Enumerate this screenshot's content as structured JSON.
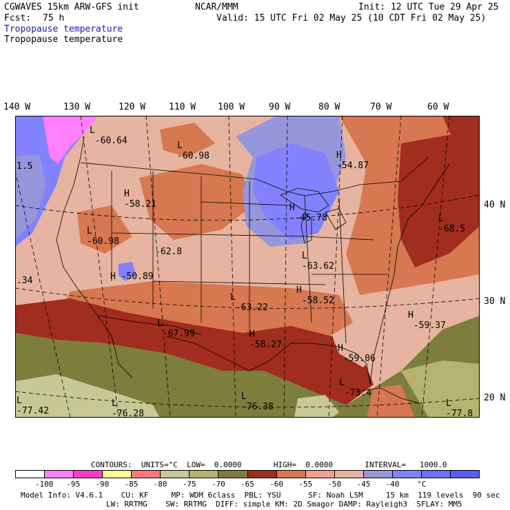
{
  "header": {
    "model": "CGWAVES 15km ARW-GFS init",
    "center": "NCAR/MMM",
    "init": "Init: 12 UTC Tue 29 Apr 25",
    "fcst_label": "Fcst:",
    "fcst_value": "75 h",
    "valid": "Valid: 15 UTC Fri 02 May 25 (10 CDT Fri 02 May 25)",
    "field_title_1": "Tropopause temperature",
    "field_title_2": "Tropopause temperature"
  },
  "longitude_labels": [
    "140 W",
    "130 W",
    "120 W",
    "110 W",
    "100 W",
    "90 W",
    "80 W",
    "70 W",
    "60 W"
  ],
  "latitude_labels": [
    "40 N",
    "30 N",
    "20 N"
  ],
  "map_labels": [
    {
      "marker": "L",
      "value": "-60.64"
    },
    {
      "marker": "L",
      "value": "-60.98"
    },
    {
      "marker": "H",
      "value": "-54.87"
    },
    {
      "marker": "",
      "value": "1.5"
    },
    {
      "marker": "H",
      "value": "-58.21"
    },
    {
      "marker": "H",
      "value": "-45.78"
    },
    {
      "marker": "L",
      "value": "-60.98"
    },
    {
      "marker": "",
      "value": "-62.8"
    },
    {
      "marker": "L",
      "value": "-68.5"
    },
    {
      "marker": "L",
      "value": "-63.62"
    },
    {
      "marker": "H",
      "value": "-50.89"
    },
    {
      "marker": "",
      "value": ".34"
    },
    {
      "marker": "L",
      "value": "-63.22"
    },
    {
      "marker": "H",
      "value": "-58.52"
    },
    {
      "marker": "H",
      "value": "-59.37"
    },
    {
      "marker": "L",
      "value": "-67.99"
    },
    {
      "marker": "H",
      "value": "-58.27"
    },
    {
      "marker": "H",
      "value": "-59.06"
    },
    {
      "marker": "L",
      "value": "-73.4"
    },
    {
      "marker": "L",
      "value": "-77.42"
    },
    {
      "marker": "L",
      "value": "-76.28"
    },
    {
      "marker": "L",
      "value": "-76.38"
    },
    {
      "marker": "L",
      "value": "-77.8"
    }
  ],
  "contours_line": "CONTOURS:  UNITS=°C  LOW=  0.0000       HIGH=  0.0000       INTERVAL=   1000.0",
  "color_scale": {
    "colors": [
      "#ffffff",
      "#ff80ff",
      "#ff3cc8",
      "#ffff96",
      "#ff7878",
      "#c8c896",
      "#b4b46e",
      "#7d7d3c",
      "#a02d1e",
      "#d77850",
      "#f0a08c",
      "#e6b4a0",
      "#9696dc",
      "#8282ff",
      "#6e6eff",
      "#5a5aff"
    ],
    "bounds": [
      "-100",
      "-95",
      "-90",
      "-85",
      "-80",
      "-75",
      "-70",
      "-65",
      "-60",
      "-55",
      "-50",
      "-45",
      "-40",
      "°C"
    ]
  },
  "footer": {
    "line1": "Model Info: V4.6.1    CU: KF     MP: WDM 6class  PBL: YSU      SF: Noah LSM     15 km  119 levels  90 sec",
    "line2": "LW: RRTMG    SW: RRTMG  DIFF: simple KM: 2D Smagor DAMP: Rayleigh3  SFLAY: MM5"
  }
}
